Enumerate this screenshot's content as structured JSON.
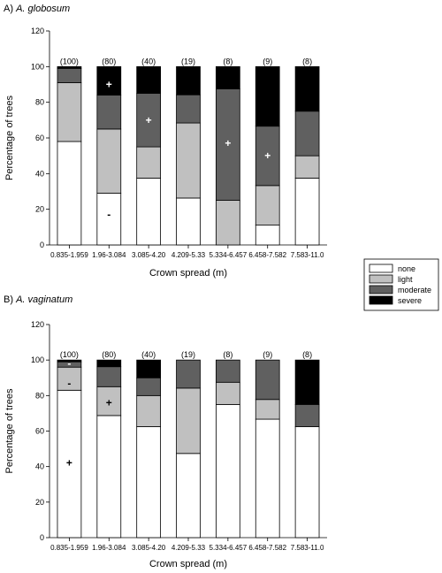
{
  "colors": {
    "none": "#ffffff",
    "light": "#c0c0c0",
    "moderate": "#606060",
    "severe": "#000000"
  },
  "legend": {
    "title": "",
    "entries": [
      "none",
      "light",
      "moderate",
      "severe"
    ]
  },
  "chart_data": [
    {
      "type": "bar",
      "stacked": true,
      "panel_prefix": "A)",
      "title": "A. globosum",
      "xlabel": "Crown spread (m)",
      "ylabel": "Percentage of trees",
      "ylim": [
        0,
        120
      ],
      "yticks": [
        0,
        20,
        40,
        60,
        80,
        100,
        120
      ],
      "grid": false,
      "categories": [
        "0.835-1.959",
        "1.96-3.084",
        "3.085-4.20",
        "4.209-5.33",
        "5.334-6.457",
        "6.458-7.582",
        "7.583-11.0"
      ],
      "counts": [
        "(100)",
        "(80)",
        "(40)",
        "(19)",
        "(8)",
        "(9)",
        "(8)"
      ],
      "series": [
        {
          "name": "none",
          "values": [
            58,
            29,
            37.5,
            26.3,
            0,
            11.1,
            37.5
          ]
        },
        {
          "name": "light",
          "values": [
            33,
            36,
            17.5,
            42.1,
            25,
            22.2,
            12.5
          ]
        },
        {
          "name": "moderate",
          "values": [
            8,
            19,
            30,
            15.8,
            62.5,
            33.3,
            25
          ]
        },
        {
          "name": "severe",
          "values": [
            1,
            16,
            15,
            15.8,
            12.5,
            33.4,
            25
          ]
        }
      ],
      "annotations": [
        {
          "text": "+",
          "category": "1.96-3.084",
          "y": 90,
          "color": "white"
        },
        {
          "text": "-",
          "category": "1.96-3.084",
          "y": 17,
          "color": "black"
        },
        {
          "text": "+",
          "category": "3.085-4.20",
          "y": 70,
          "color": "white"
        },
        {
          "text": "+",
          "category": "5.334-6.457",
          "y": 57,
          "color": "white"
        },
        {
          "text": "+",
          "category": "6.458-7.582",
          "y": 50,
          "color": "white"
        }
      ]
    },
    {
      "type": "bar",
      "stacked": true,
      "panel_prefix": "B)",
      "title": "A. vaginatum",
      "xlabel": "Crown spread (m)",
      "ylabel": "Percentage of trees",
      "ylim": [
        0,
        120
      ],
      "yticks": [
        0,
        20,
        40,
        60,
        80,
        100,
        120
      ],
      "grid": false,
      "categories": [
        "0.835-1.959",
        "1.96-3.084",
        "3.085-4.20",
        "4.209-5.33",
        "5.334-6.457",
        "6.458-7.582",
        "7.583-11.0"
      ],
      "counts": [
        "(100)",
        "(80)",
        "(40)",
        "(19)",
        "(8)",
        "(9)",
        "(8)"
      ],
      "series": [
        {
          "name": "none",
          "values": [
            83,
            68.75,
            62.5,
            47.4,
            75,
            66.7,
            62.5
          ]
        },
        {
          "name": "light",
          "values": [
            13,
            16.25,
            17.5,
            36.8,
            12.5,
            11.1,
            0
          ]
        },
        {
          "name": "moderate",
          "values": [
            3,
            11.25,
            10,
            15.8,
            12.5,
            22.2,
            12.5
          ]
        },
        {
          "name": "severe",
          "values": [
            1,
            3.75,
            10,
            0,
            0,
            0,
            25
          ]
        }
      ],
      "annotations": [
        {
          "text": "-",
          "category": "0.835-1.959",
          "y": 98,
          "color": "white"
        },
        {
          "text": "-",
          "category": "0.835-1.959",
          "y": 87,
          "color": "black"
        },
        {
          "text": "+",
          "category": "0.835-1.959",
          "y": 42,
          "color": "black"
        },
        {
          "text": "+",
          "category": "1.96-3.084",
          "y": 76,
          "color": "black"
        }
      ]
    }
  ]
}
